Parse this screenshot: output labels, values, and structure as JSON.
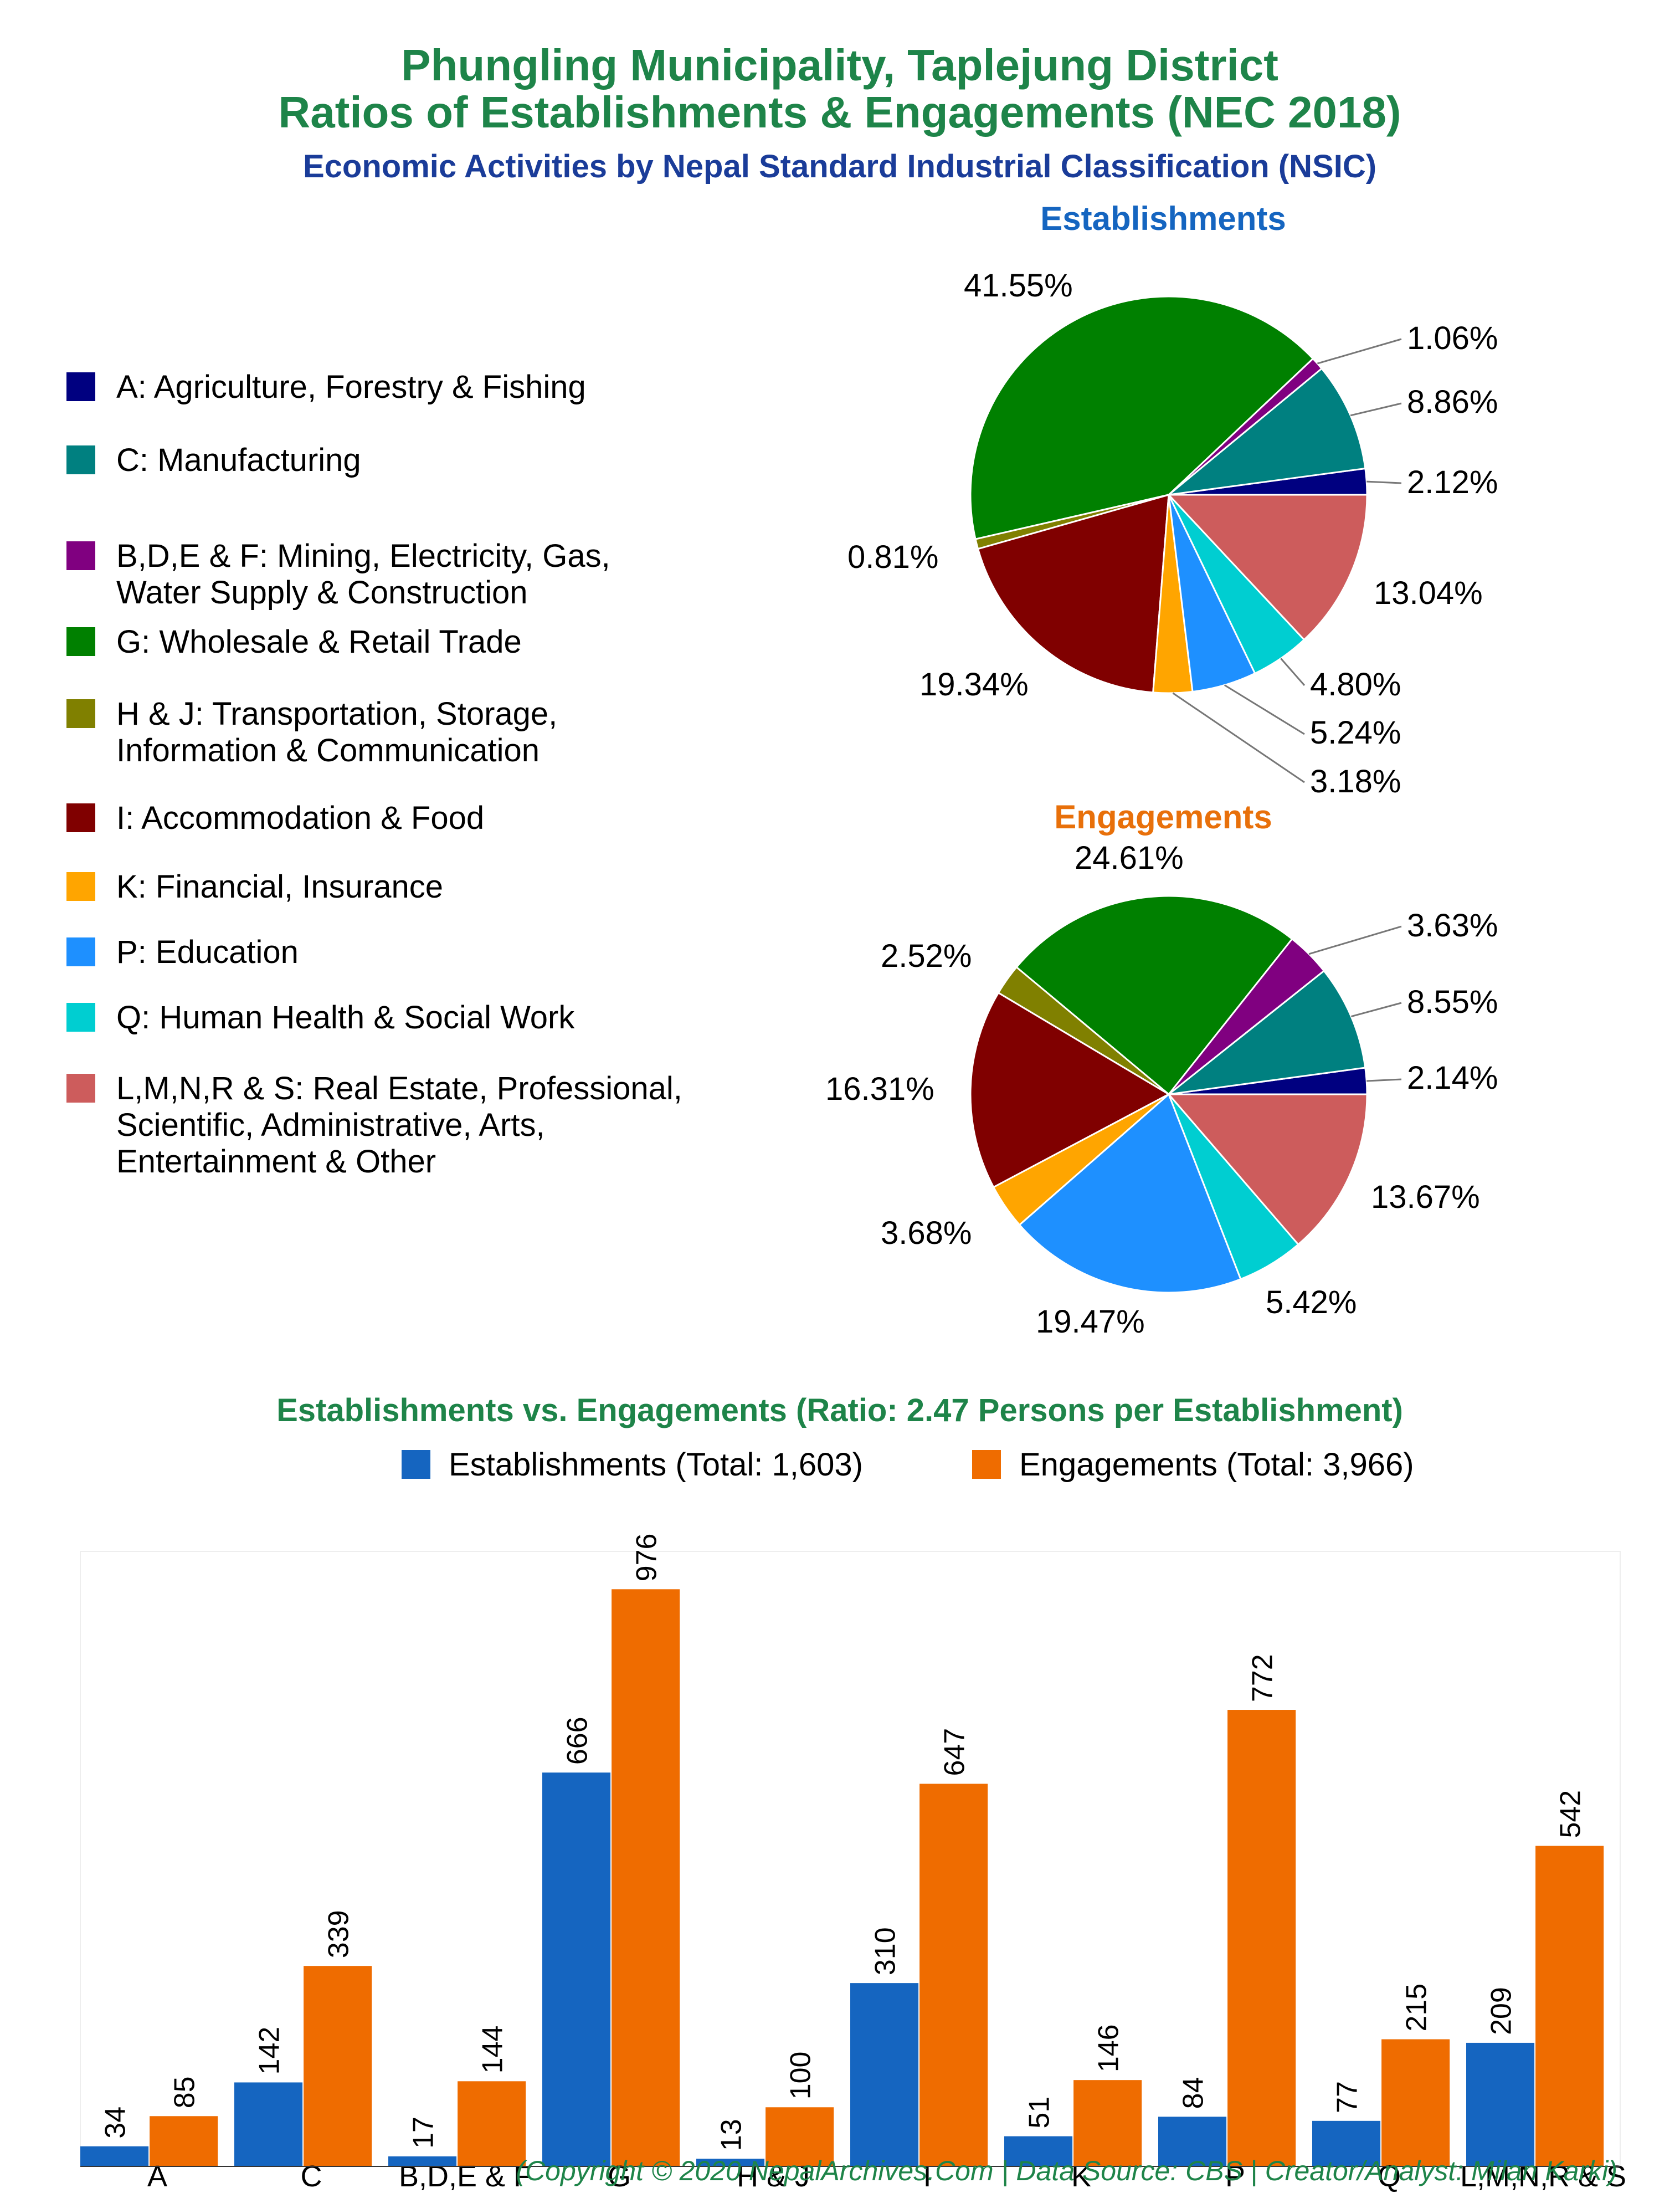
{
  "title_line1": "Phungling Municipality, Taplejung District",
  "title_line2": "Ratios of Establishments & Engagements (NEC 2018)",
  "subtitle": "Economic Activities by Nepal Standard Industrial Classification (NSIC)",
  "legend": [
    {
      "color": "#000080",
      "lines": [
        "A: Agriculture, Forestry & Fishing"
      ]
    },
    {
      "color": "#008080",
      "lines": [
        "C: Manufacturing"
      ]
    },
    {
      "color": "#800080",
      "lines": [
        "B,D,E & F: Mining, Electricity, Gas,",
        "Water Supply & Construction"
      ]
    },
    {
      "color": "#008000",
      "lines": [
        "G: Wholesale & Retail Trade"
      ]
    },
    {
      "color": "#808000",
      "lines": [
        "H & J: Transportation, Storage,",
        "Information & Communication"
      ]
    },
    {
      "color": "#800000",
      "lines": [
        "I: Accommodation & Food"
      ]
    },
    {
      "color": "#FFA500",
      "lines": [
        "K: Financial, Insurance"
      ]
    },
    {
      "color": "#1E90FF",
      "lines": [
        "P: Education"
      ]
    },
    {
      "color": "#00CED1",
      "lines": [
        "Q: Human Health & Social Work"
      ]
    },
    {
      "color": "#CD5C5C",
      "lines": [
        "L,M,N,R & S: Real Estate, Professional,",
        "Scientific, Administrative, Arts,",
        "Entertainment & Other"
      ]
    }
  ],
  "footer": "(Copyright © 2020 NepalArchives.Com | Data Source: CBS | Creator/Analyst: Milan Karki)",
  "chart_data": [
    {
      "type": "pie",
      "title": "Establishments",
      "title_color": "#1565C0",
      "slices": [
        {
          "label": "A",
          "value": 2.12,
          "text": "2.12%",
          "color": "#000080"
        },
        {
          "label": "C",
          "value": 8.86,
          "text": "8.86%",
          "color": "#008080"
        },
        {
          "label": "B,D,E & F",
          "value": 1.06,
          "text": "1.06%",
          "color": "#800080"
        },
        {
          "label": "G",
          "value": 41.55,
          "text": "41.55%",
          "color": "#008000"
        },
        {
          "label": "H & J",
          "value": 0.81,
          "text": "0.81%",
          "color": "#808000"
        },
        {
          "label": "I",
          "value": 19.34,
          "text": "19.34%",
          "color": "#800000"
        },
        {
          "label": "K",
          "value": 3.18,
          "text": "3.18%",
          "color": "#FFA500"
        },
        {
          "label": "P",
          "value": 5.24,
          "text": "5.24%",
          "color": "#1E90FF"
        },
        {
          "label": "Q",
          "value": 4.8,
          "text": "4.80%",
          "color": "#00CED1"
        },
        {
          "label": "L,M,N,R & S",
          "value": 13.04,
          "text": "13.04%",
          "color": "#CD5C5C"
        }
      ]
    },
    {
      "type": "pie",
      "title": "Engagements",
      "title_color": "#E8700A",
      "slices": [
        {
          "label": "A",
          "value": 2.14,
          "text": "2.14%",
          "color": "#000080"
        },
        {
          "label": "C",
          "value": 8.55,
          "text": "8.55%",
          "color": "#008080"
        },
        {
          "label": "B,D,E & F",
          "value": 3.63,
          "text": "3.63%",
          "color": "#800080"
        },
        {
          "label": "G",
          "value": 24.61,
          "text": "24.61%",
          "color": "#008000"
        },
        {
          "label": "H & J",
          "value": 2.52,
          "text": "2.52%",
          "color": "#808000"
        },
        {
          "label": "I",
          "value": 16.31,
          "text": "16.31%",
          "color": "#800000"
        },
        {
          "label": "K",
          "value": 3.68,
          "text": "3.68%",
          "color": "#FFA500"
        },
        {
          "label": "P",
          "value": 19.47,
          "text": "19.47%",
          "color": "#1E90FF"
        },
        {
          "label": "Q",
          "value": 5.42,
          "text": "5.42%",
          "color": "#00CED1"
        },
        {
          "label": "L,M,N,R & S",
          "value": 13.67,
          "text": "13.67%",
          "color": "#CD5C5C"
        }
      ]
    },
    {
      "type": "bar",
      "title": "Establishments vs. Engagements (Ratio: 2.47 Persons per Establishment)",
      "categories": [
        "A",
        "C",
        "B,D,E & F",
        "G",
        "H & J",
        "I",
        "K",
        "P",
        "Q",
        "L,M,N,R & S"
      ],
      "series": [
        {
          "name": "Establishments (Total: 1,603)",
          "color": "#1565C0",
          "values": [
            34,
            142,
            17,
            666,
            13,
            310,
            51,
            84,
            77,
            209
          ]
        },
        {
          "name": "Engagements (Total: 3,966)",
          "color": "#EF6C00",
          "values": [
            85,
            339,
            144,
            976,
            100,
            647,
            146,
            772,
            215,
            542
          ]
        }
      ],
      "ylim": [
        0,
        1040
      ],
      "grid": false,
      "legend": "top"
    }
  ]
}
